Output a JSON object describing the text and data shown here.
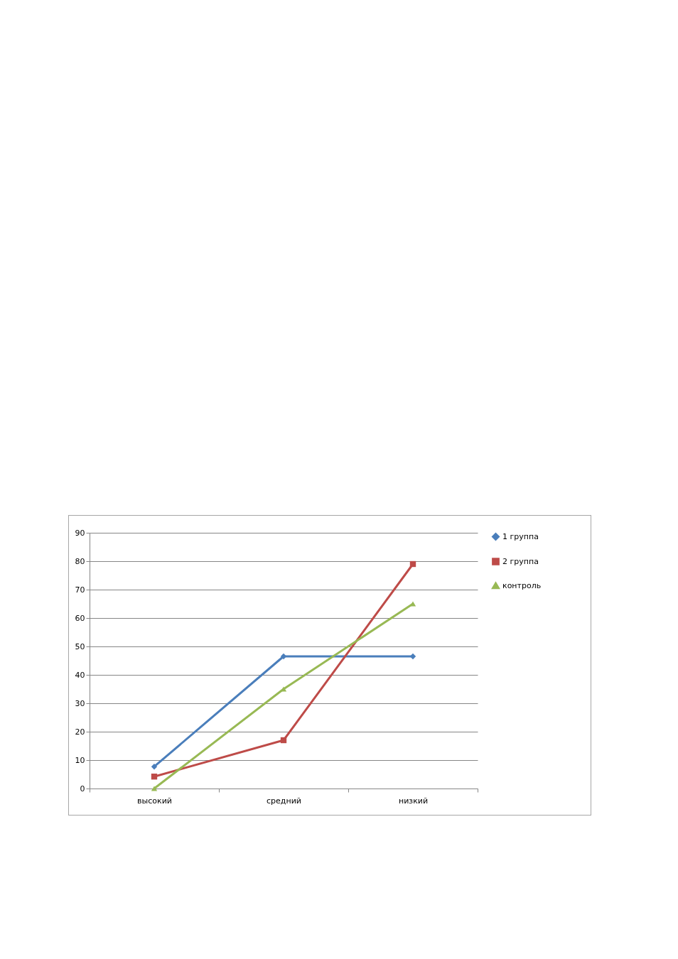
{
  "chart_data": {
    "type": "line",
    "categories": [
      "высокий",
      "средний",
      "низкий"
    ],
    "series": [
      {
        "name": "1 группа",
        "color": "#4a7ebb",
        "marker": "diamond",
        "values": [
          7.7,
          46.5,
          46.5
        ]
      },
      {
        "name": "2 группа",
        "color": "#be4b48",
        "marker": "square",
        "values": [
          4.2,
          17,
          79
        ]
      },
      {
        "name": "контроль",
        "color": "#98b954",
        "marker": "triangle",
        "values": [
          0,
          35,
          65
        ]
      }
    ],
    "ylim": [
      0,
      90
    ],
    "yticks": [
      0,
      10,
      20,
      30,
      40,
      50,
      60,
      70,
      80,
      90
    ],
    "grid": "y",
    "legend": "right"
  }
}
